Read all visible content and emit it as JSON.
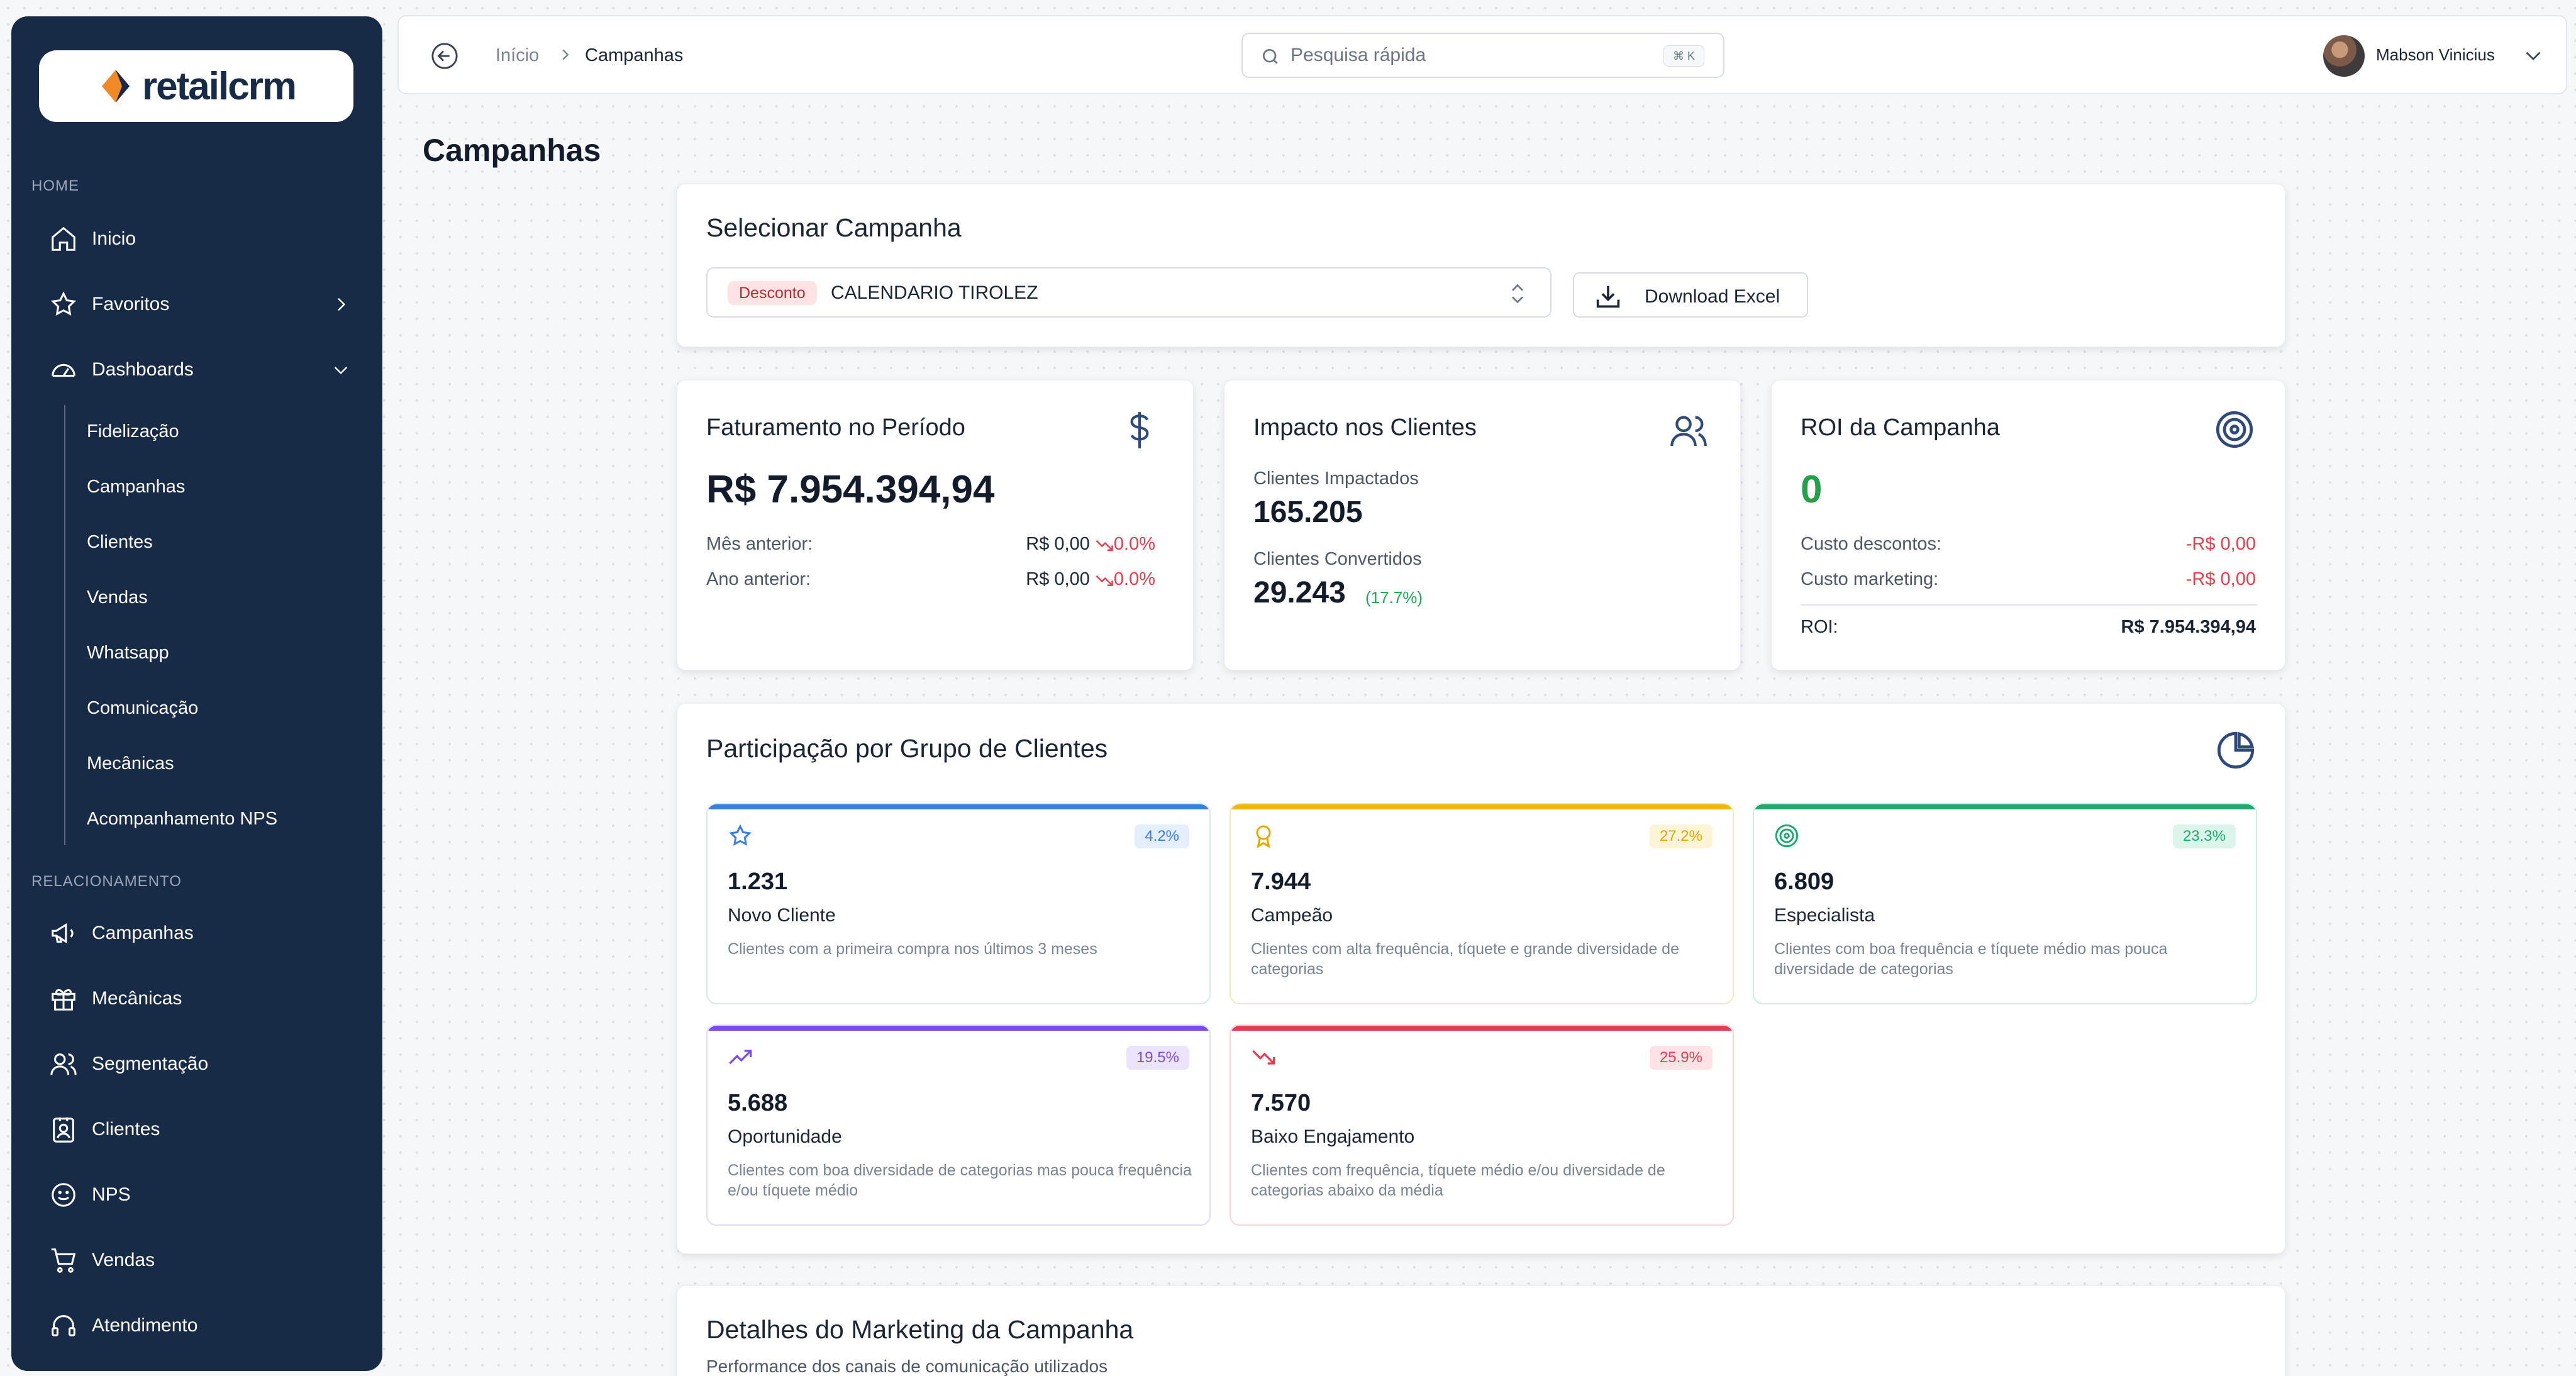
{
  "sidebar": {
    "logo": "retailcrm",
    "section_home": "HOME",
    "section_rel": "RELACIONAMENTO",
    "items_home": [
      {
        "label": "Inicio",
        "icon": "home-icon"
      },
      {
        "label": "Favoritos",
        "icon": "star-icon"
      },
      {
        "label": "Dashboards",
        "icon": "gauge-icon"
      }
    ],
    "dashboard_sub": [
      "Fidelização",
      "Campanhas",
      "Clientes",
      "Vendas",
      "Whatsapp",
      "Comunicação",
      "Mecânicas",
      "Acompanhamento NPS"
    ],
    "items_rel": [
      {
        "label": "Campanhas",
        "icon": "megaphone-icon"
      },
      {
        "label": "Mecânicas",
        "icon": "gift-icon"
      },
      {
        "label": "Segmentação",
        "icon": "users-icon"
      },
      {
        "label": "Clientes",
        "icon": "contact-icon"
      },
      {
        "label": "NPS",
        "icon": "smile-icon"
      },
      {
        "label": "Vendas",
        "icon": "cart-icon"
      },
      {
        "label": "Atendimento",
        "icon": "headset-icon"
      }
    ]
  },
  "topbar": {
    "breadcrumb": [
      "Início",
      "Campanhas"
    ],
    "search_placeholder": "Pesquisa rápida",
    "shortcut": "⌘ K",
    "user_name": "Mabson Vinicius"
  },
  "page": {
    "title": "Campanhas"
  },
  "select_campaign": {
    "title": "Selecionar Campanha",
    "badge": "Desconto",
    "value": "CALENDARIO TIROLEZ",
    "download_label": "Download Excel"
  },
  "faturamento": {
    "title": "Faturamento no Período",
    "value": "R$ 7.954.394,94",
    "rows": [
      {
        "label": "Mês anterior:",
        "value": "R$ 0,00",
        "change": "0.0%"
      },
      {
        "label": "Ano anterior:",
        "value": "R$ 0,00",
        "change": "0.0%"
      }
    ]
  },
  "impacto": {
    "title": "Impacto nos Clientes",
    "impacted_label": "Clientes Impactados",
    "impacted_value": "165.205",
    "converted_label": "Clientes Convertidos",
    "converted_value": "29.243",
    "converted_pct": "(17.7%)"
  },
  "roi": {
    "title": "ROI da Campanha",
    "value": "0",
    "rows": [
      {
        "label": "Custo descontos:",
        "value": "-R$ 0,00"
      },
      {
        "label": "Custo marketing:",
        "value": "-R$ 0,00"
      }
    ],
    "total_label": "ROI:",
    "total_value": "R$ 7.954.394,94"
  },
  "participacao": {
    "title": "Participação por Grupo de Clientes",
    "groups": [
      {
        "count": "1.231",
        "name": "Novo Cliente",
        "pct": "4.2%",
        "desc": "Clientes com a primeira compra nos últimos 3 meses",
        "color": "#3b7bea",
        "badge_bg": "#e4eefd",
        "icon": "star-icon"
      },
      {
        "count": "7.944",
        "name": "Campeão",
        "pct": "27.2%",
        "desc": "Clientes com alta frequência, tíquete e grande diversidade de categorias",
        "color": "#f2b705",
        "badge_bg": "#fdf3d6",
        "icon": "award-icon"
      },
      {
        "count": "6.809",
        "name": "Especialista",
        "pct": "23.3%",
        "desc": "Clientes com boa frequência e tíquete médio mas pouca diversidade de categorias",
        "color": "#1aab6e",
        "badge_bg": "#dcf4e9",
        "icon": "target-icon"
      },
      {
        "count": "5.688",
        "name": "Oportunidade",
        "pct": "19.5%",
        "desc": "Clientes com boa diversidade de categorias mas pouca frequência e/ou tíquete médio",
        "color": "#7b4de8",
        "badge_bg": "#ece4fc",
        "icon": "trending-up-icon"
      },
      {
        "count": "7.570",
        "name": "Baixo Engajamento",
        "pct": "25.9%",
        "desc": "Clientes com frequência, tíquete médio e/ou diversidade de categorias abaixo da média",
        "color": "#e23d52",
        "badge_bg": "#fde2e6",
        "icon": "trending-down-icon"
      }
    ]
  },
  "marketing": {
    "title": "Detalhes do Marketing da Campanha",
    "subtitle": "Performance dos canais de comunicação utilizados"
  },
  "colors": {
    "sidebar_bg": "#172b47",
    "logo_orange": "#f08a24",
    "negative": "#e53e4a",
    "positive": "#22a04a",
    "icon_blue": "#2f4a7a"
  }
}
